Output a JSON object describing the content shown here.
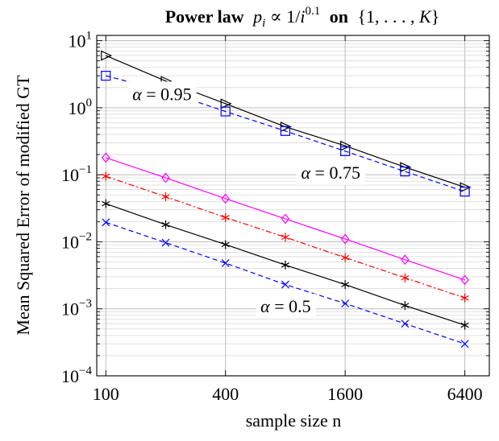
{
  "chart_data": {
    "type": "line",
    "title": {
      "bold_part": "Power law",
      "math_p": "p",
      "math_i_sub": "i",
      "math_rest": " ∝ 1/",
      "math_i": "i",
      "math_exp": "0.1",
      "on_word": "on",
      "set_text": "{1, . . . , ",
      "set_K": "K",
      "set_close": "}"
    },
    "xlabel": "sample size n",
    "ylabel": "Mean Squared Error of modified GT",
    "x_scale": "log",
    "y_scale": "log",
    "xlim": [
      90,
      8500
    ],
    "ylim": [
      0.0001,
      12
    ],
    "x_ticks": [
      {
        "value": 100,
        "label": "100"
      },
      {
        "value": 400,
        "label": "400"
      },
      {
        "value": 1600,
        "label": "1600"
      },
      {
        "value": 6400,
        "label": "6400"
      }
    ],
    "y_ticks": [
      {
        "value": 0.0001,
        "base": "10",
        "exp": "−4"
      },
      {
        "value": 0.001,
        "base": "10",
        "exp": "−3"
      },
      {
        "value": 0.01,
        "base": "10",
        "exp": "−2"
      },
      {
        "value": 0.1,
        "base": "10",
        "exp": "−1"
      },
      {
        "value": 1,
        "base": "10",
        "exp": "0"
      },
      {
        "value": 10,
        "base": "10",
        "exp": "1"
      }
    ],
    "grid": true,
    "x": [
      100,
      200,
      400,
      800,
      1600,
      3200,
      6400
    ],
    "series": [
      {
        "color": "#000000",
        "dash": "",
        "marker": "triangle-right",
        "values": [
          6.0,
          2.5,
          1.15,
          0.52,
          0.27,
          0.13,
          0.065
        ]
      },
      {
        "color": "#0000ff",
        "dash": "6,4",
        "marker": "square",
        "values": [
          3.0,
          1.75,
          0.88,
          0.45,
          0.225,
          0.112,
          0.056
        ]
      },
      {
        "color": "#ff00ff",
        "dash": "",
        "marker": "diamond",
        "values": [
          0.18,
          0.09,
          0.044,
          0.022,
          0.011,
          0.0054,
          0.0027
        ]
      },
      {
        "color": "#ff0000",
        "dash": "7,3,2,3",
        "marker": "star",
        "values": [
          0.095,
          0.047,
          0.023,
          0.0117,
          0.0058,
          0.0029,
          0.00145
        ]
      },
      {
        "color": "#000000",
        "dash": "",
        "marker": "star",
        "values": [
          0.037,
          0.018,
          0.0091,
          0.0045,
          0.0023,
          0.00112,
          0.00057
        ]
      },
      {
        "color": "#0000ff",
        "dash": "6,4",
        "marker": "x",
        "values": [
          0.0195,
          0.0097,
          0.0048,
          0.0023,
          0.0012,
          0.0006,
          0.0003
        ]
      }
    ],
    "annotations": [
      {
        "alpha": "α",
        "text": " = 0.95",
        "x": 136,
        "y": 1.3
      },
      {
        "alpha": "α",
        "text": " = 0.75",
        "x": 960,
        "y": 0.088
      },
      {
        "alpha": "α",
        "text": " = 0.5",
        "x": 600,
        "y": 0.00089
      }
    ]
  }
}
